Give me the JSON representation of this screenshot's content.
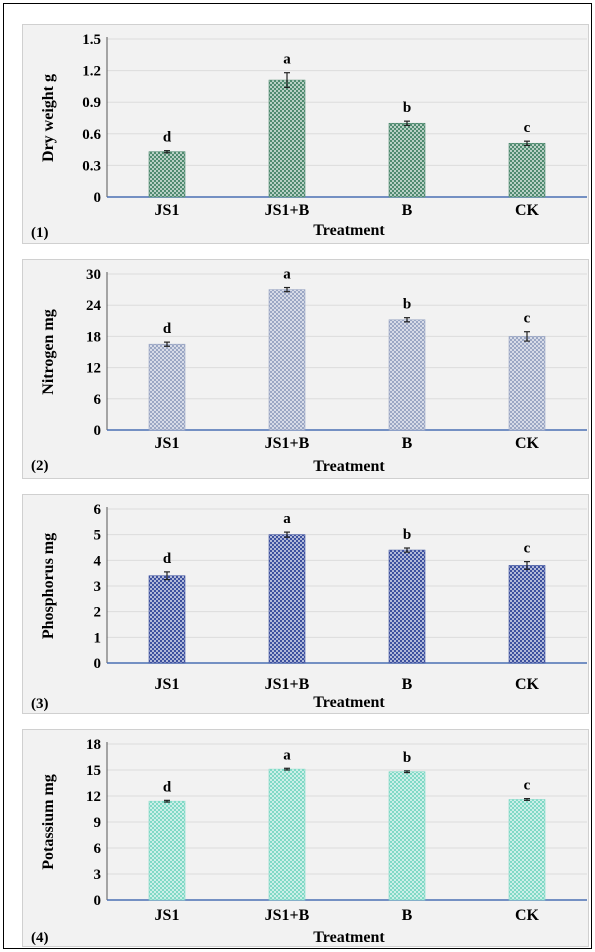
{
  "chart_data": [
    {
      "type": "bar",
      "panel_label": "(1)",
      "ylabel": "Dry weight g",
      "xlabel": "Treatment",
      "categories": [
        "JS1",
        "JS1+B",
        "B",
        "CK"
      ],
      "values": [
        0.43,
        1.11,
        0.7,
        0.51
      ],
      "errors": [
        0.01,
        0.07,
        0.02,
        0.02
      ],
      "sig_labels": [
        "d",
        "a",
        "b",
        "c"
      ],
      "ylim": [
        0,
        1.5
      ],
      "yticks": [
        "0",
        "0.3",
        "0.6",
        "0.9",
        "1.2",
        "1.5"
      ],
      "ytick_values": [
        0,
        0.3,
        0.6,
        0.9,
        1.2,
        1.5
      ],
      "color": "#4e8a6e",
      "grid": true
    },
    {
      "type": "bar",
      "panel_label": "(2)",
      "ylabel": "Nitrogen  mg",
      "xlabel": "Treatment",
      "categories": [
        "JS1",
        "JS1+B",
        "B",
        "CK"
      ],
      "values": [
        16.5,
        27.0,
        21.2,
        18.0
      ],
      "errors": [
        0.4,
        0.4,
        0.4,
        0.9
      ],
      "sig_labels": [
        "d",
        "a",
        "b",
        "c"
      ],
      "ylim": [
        0,
        30
      ],
      "yticks": [
        "0",
        "6",
        "12",
        "18",
        "24",
        "30"
      ],
      "ytick_values": [
        0,
        6,
        12,
        18,
        24,
        30
      ],
      "color": "#9aa6c4",
      "grid": true
    },
    {
      "type": "bar",
      "panel_label": "(3)",
      "ylabel": "Phosphorus  mg",
      "xlabel": "Treatment",
      "categories": [
        "JS1",
        "JS1+B",
        "B",
        "CK"
      ],
      "values": [
        3.4,
        5.0,
        4.4,
        3.8
      ],
      "errors": [
        0.15,
        0.1,
        0.08,
        0.15
      ],
      "sig_labels": [
        "d",
        "a",
        "b",
        "c"
      ],
      "ylim": [
        0,
        6
      ],
      "yticks": [
        "0",
        "1",
        "2",
        "3",
        "4",
        "5",
        "6"
      ],
      "ytick_values": [
        0,
        1,
        2,
        3,
        4,
        5,
        6
      ],
      "color": "#3b4f9e",
      "grid": true
    },
    {
      "type": "bar",
      "panel_label": "(4)",
      "ylabel": "Potassium  mg",
      "xlabel": "Treatment",
      "categories": [
        "JS1",
        "JS1+B",
        "B",
        "CK"
      ],
      "values": [
        11.4,
        15.1,
        14.8,
        11.6
      ],
      "errors": [
        0.1,
        0.1,
        0.1,
        0.1
      ],
      "sig_labels": [
        "d",
        "a",
        "b",
        "c"
      ],
      "ylim": [
        0,
        18
      ],
      "yticks": [
        "0",
        "3",
        "6",
        "9",
        "12",
        "15",
        "18"
      ],
      "ytick_values": [
        0,
        3,
        6,
        9,
        12,
        15,
        18
      ],
      "color": "#7fd9c6",
      "grid": true
    }
  ]
}
